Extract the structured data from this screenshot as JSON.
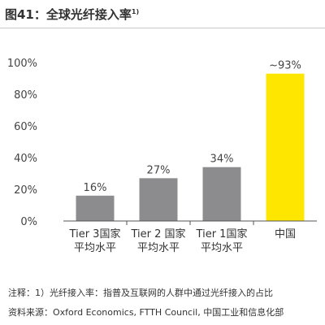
{
  "figure": {
    "title": "图41：全球光纤接入率",
    "title_note_ref": "1)"
  },
  "chart_data": {
    "type": "bar",
    "categories": [
      [
        "Tier 3国家",
        "平均水平"
      ],
      [
        "Tier 2 国家",
        "平均水平"
      ],
      [
        "Tier 1国家",
        "平均水平"
      ],
      [
        "中国"
      ]
    ],
    "values": [
      16,
      27,
      34,
      93
    ],
    "data_labels": [
      "16%",
      "27%",
      "34%",
      "~93%"
    ],
    "bar_colors": [
      "#8c8c8e",
      "#8c8c8e",
      "#8c8c8e",
      "#ffe600"
    ],
    "y_ticks": [
      0,
      20,
      40,
      60,
      80,
      100
    ],
    "y_tick_labels": [
      "0%",
      "20%",
      "40%",
      "60%",
      "80%",
      "100%"
    ],
    "ylim": [
      0,
      100
    ],
    "grid": false
  },
  "notes": {
    "footnote": "注释：1）光纤接入率：指普及互联网的人群中通过光纤接入的占比",
    "source": "资料来源：Oxford Economics, FTTH Council, 中国工业和信息化部"
  }
}
